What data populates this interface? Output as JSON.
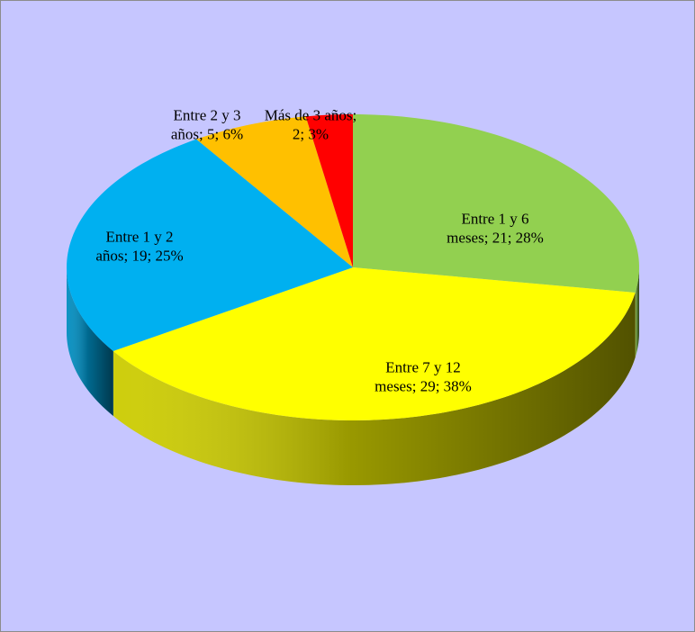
{
  "chart_data": {
    "type": "pie",
    "values": [
      21,
      29,
      19,
      5,
      2
    ],
    "value_labels": [
      [
        "Entre 1 y 6",
        "meses; 21; 28%"
      ],
      [
        "Entre 7 y 12",
        "meses; 29; 38%"
      ],
      [
        "Entre 1 y 2",
        "años; 19; 25%"
      ],
      [
        "Entre 2 y 3",
        "años; 5; 6%"
      ],
      [
        "Más de 3 años;",
        "2; 3%"
      ]
    ],
    "colors": [
      "#92d050",
      "#ffff00",
      "#00b0f0",
      "#ffc000",
      "#ff0000"
    ]
  }
}
